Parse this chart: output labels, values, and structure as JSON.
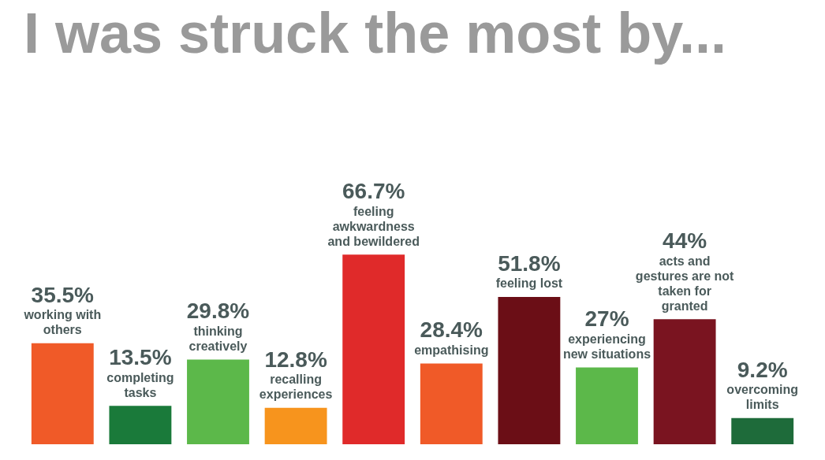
{
  "chart_data": {
    "type": "bar",
    "title": "I was struck the most by...",
    "categories": [
      "working with others",
      "completing tasks",
      "thinking creatively",
      "recalling experiences",
      "feeling awkwardness and bewildered",
      "empathising",
      "feeling lost",
      "experiencing new situations",
      "acts and gestures are not taken for granted",
      "overcoming limits"
    ],
    "values": [
      35.5,
      13.5,
      29.8,
      12.8,
      66.7,
      28.4,
      51.8,
      27,
      44,
      9.2
    ],
    "value_labels": [
      "35.5%",
      "13.5%",
      "29.8%",
      "12.8%",
      "66.7%",
      "28.4%",
      "51.8%",
      "27%",
      "44%",
      "9.2%"
    ],
    "colors": [
      "#f05a28",
      "#1a7a3a",
      "#5cb84a",
      "#f7941d",
      "#e02a2a",
      "#f05a28",
      "#6b0e16",
      "#5cb84a",
      "#7a1420",
      "#1e6b3a"
    ],
    "legend": false
  }
}
